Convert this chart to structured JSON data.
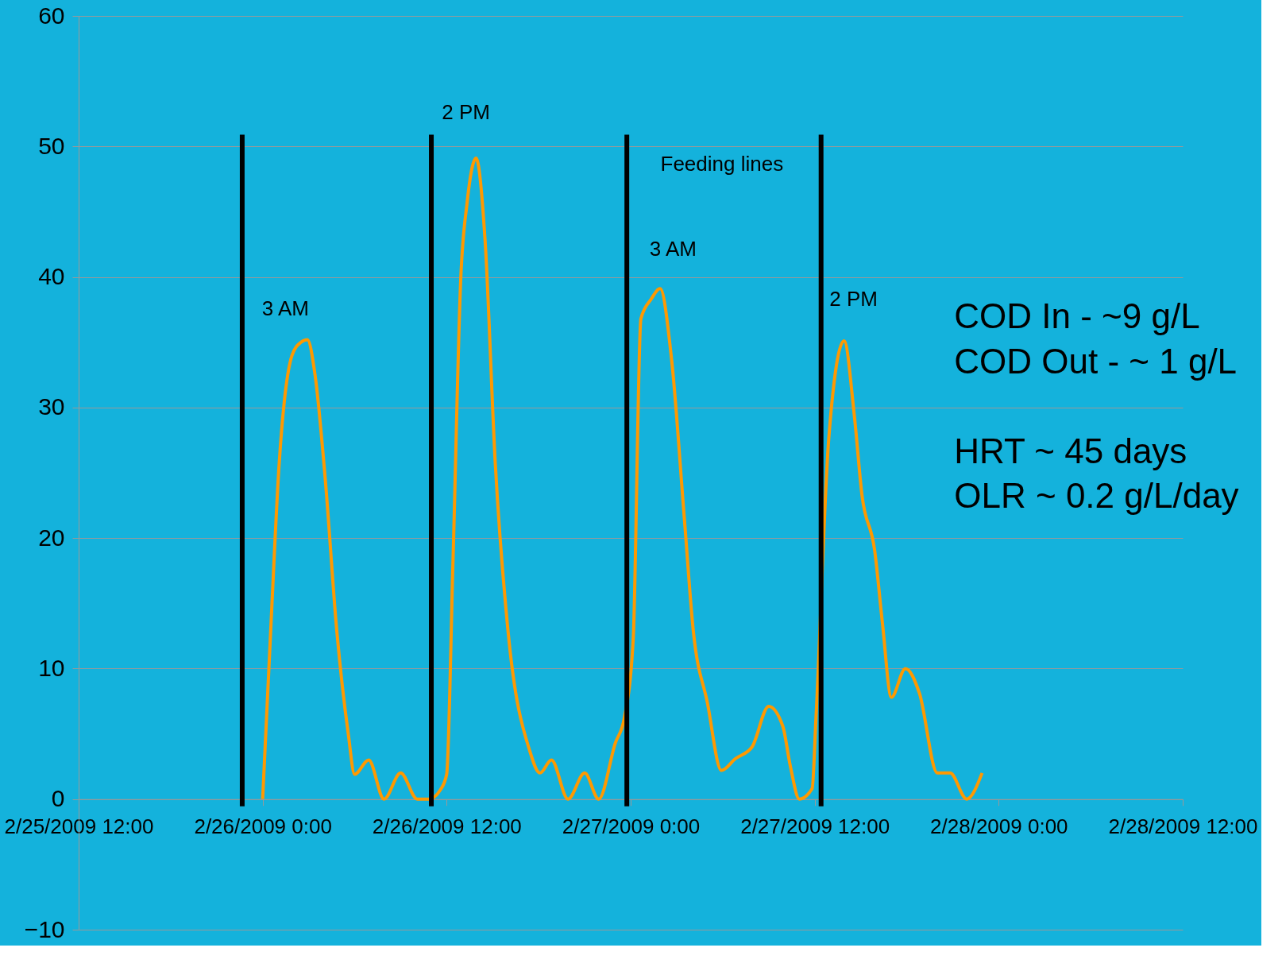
{
  "chart_data": {
    "type": "line",
    "x": [
      "2009-02-26T00:00",
      "2009-02-26T00:30",
      "2009-02-26T01:05",
      "2009-02-26T01:55",
      "2009-02-26T02:30",
      "2009-02-26T02:55",
      "2009-02-26T03:25",
      "2009-02-26T04:05",
      "2009-02-26T04:50",
      "2009-02-26T05:35",
      "2009-02-26T06:00",
      "2009-02-26T06:55",
      "2009-02-26T07:55",
      "2009-02-26T09:00",
      "2009-02-26T10:05",
      "2009-02-26T10:50",
      "2009-02-26T11:35",
      "2009-02-26T12:00",
      "2009-02-26T12:25",
      "2009-02-26T12:55",
      "2009-02-26T13:20",
      "2009-02-26T13:55",
      "2009-02-26T14:30",
      "2009-02-26T15:10",
      "2009-02-26T16:00",
      "2009-02-26T17:25",
      "2009-02-26T18:05",
      "2009-02-26T18:50",
      "2009-02-26T19:55",
      "2009-02-26T21:00",
      "2009-02-26T21:55",
      "2009-02-26T23:00",
      "2009-02-26T23:35",
      "2009-02-27T00:10",
      "2009-02-27T00:40",
      "2009-02-27T01:20",
      "2009-02-27T01:55",
      "2009-02-27T02:40",
      "2009-02-27T03:30",
      "2009-02-27T04:05",
      "2009-02-27T05:00",
      "2009-02-27T05:55",
      "2009-02-27T06:50",
      "2009-02-27T07:55",
      "2009-02-27T09:00",
      "2009-02-27T09:55",
      "2009-02-27T10:25",
      "2009-02-27T11:00",
      "2009-02-27T11:50",
      "2009-02-27T12:05",
      "2009-02-27T12:55",
      "2009-02-27T13:55",
      "2009-02-27T14:35",
      "2009-02-27T15:05",
      "2009-02-27T15:55",
      "2009-02-27T16:25",
      "2009-02-27T17:00",
      "2009-02-27T17:55",
      "2009-02-27T18:50",
      "2009-02-27T20:00",
      "2009-02-27T20:50",
      "2009-02-27T21:55",
      "2009-02-27T22:55"
    ],
    "series": [
      {
        "color": "#ff9900",
        "values": [
          0,
          12.3,
          25.8,
          34,
          35,
          35.2,
          32.5,
          24.5,
          12.9,
          5,
          1.9,
          3,
          0,
          2,
          0,
          0,
          0.7,
          1.9,
          18.4,
          39.8,
          45.7,
          49.1,
          42.9,
          25.8,
          12.9,
          3.7,
          2,
          3,
          0,
          2,
          0,
          4.3,
          6.2,
          12.3,
          36.8,
          38.3,
          39.1,
          33.7,
          21.5,
          12.9,
          7.4,
          2.2,
          3.1,
          4,
          7.1,
          5.6,
          2.5,
          0,
          0.8,
          6.2,
          27.6,
          35.1,
          29.4,
          23.3,
          19,
          13.5,
          7.8,
          10,
          8.1,
          2,
          2,
          0,
          2
        ]
      }
    ],
    "xlim": [
      "2009-02-25T12:00",
      "2009-02-28T12:00"
    ],
    "xticks": [
      {
        "value": "2009-02-25T12:00",
        "label": "2/25/2009 12:00"
      },
      {
        "value": "2009-02-26T00:00",
        "label": "2/26/2009 0:00"
      },
      {
        "value": "2009-02-26T12:00",
        "label": "2/26/2009 12:00"
      },
      {
        "value": "2009-02-27T00:00",
        "label": "2/27/2009 0:00"
      },
      {
        "value": "2009-02-27T12:00",
        "label": "2/27/2009 12:00"
      },
      {
        "value": "2009-02-28T00:00",
        "label": "2/28/2009 0:00"
      },
      {
        "value": "2009-02-28T12:00",
        "label": "2/28/2009 12:00"
      }
    ],
    "ylim": [
      -10,
      60
    ],
    "yticks": [
      -10,
      0,
      10,
      20,
      30,
      40,
      50,
      60
    ],
    "grid": "y",
    "marker": "none",
    "line_style": "solid",
    "ref_lines": [
      {
        "axis": "x",
        "value": "2009-02-25T22:40",
        "color": "#000000"
      },
      {
        "axis": "x",
        "value": "2009-02-26T11:00",
        "color": "#000000"
      },
      {
        "axis": "x",
        "value": "2009-02-26T23:45",
        "color": "#000000"
      },
      {
        "axis": "x",
        "value": "2009-02-27T12:25",
        "color": "#000000"
      }
    ],
    "annotations": [
      "3 AM",
      "2 PM",
      "3 AM",
      "Feeding lines",
      "2 PM",
      "COD In - ~9 g/L",
      "COD Out - ~ 1 g/L",
      "HRT  ~ 45 days",
      "OLR ~ 0.2 g/L/day"
    ]
  }
}
